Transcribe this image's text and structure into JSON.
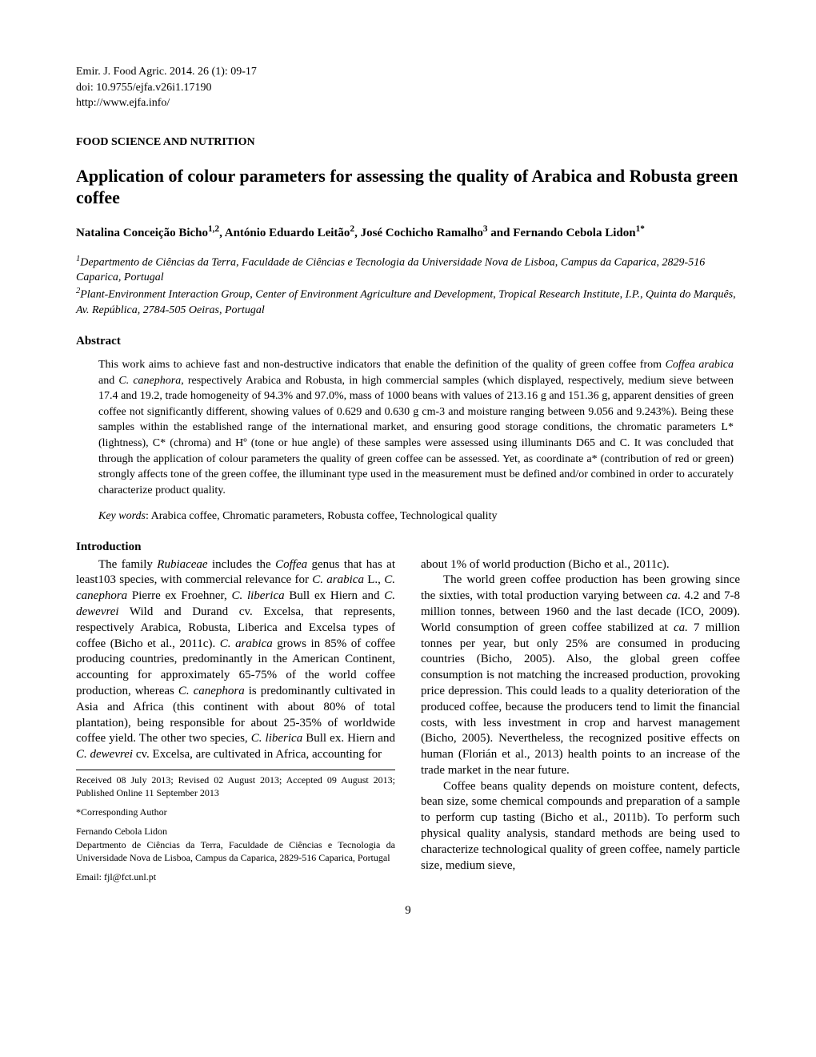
{
  "header": {
    "journal": "Emir. J. Food Agric. 2014. 26 (1): 09-17",
    "doi": "doi: 10.9755/ejfa.v26i1.17190",
    "url": "http://www.ejfa.info/"
  },
  "section_heading": "FOOD SCIENCE AND NUTRITION",
  "title": "Application of colour parameters for assessing the quality of Arabica and Robusta green coffee",
  "authors_html": "Natalina Conceição Bicho<sup>1,2</sup>, António Eduardo Leitão<sup>2</sup>, José Cochicho Ramalho<sup>3</sup> and Fernando Cebola Lidon<sup>1*</sup>",
  "affiliations": {
    "a1": "<sup>1</sup>Departmento de Ciências da Terra, Faculdade de Ciências e Tecnologia da Universidade Nova de Lisboa, Campus da Caparica, 2829-516 Caparica, Portugal",
    "a2": "<sup>2</sup>Plant-Environment Interaction Group, Center of Environment Agriculture and Development, Tropical Research Institute, I.P., Quinta do Marquês, Av. República, 2784-505 Oeiras, Portugal"
  },
  "abstract": {
    "label": "Abstract",
    "text": "This work aims to achieve fast and non-destructive indicators that enable the definition of the quality of green coffee from <i>Coffea arabica</i> and <i>C. canephora</i>, respectively Arabica and Robusta, in high commercial samples (which displayed, respectively, medium sieve between 17.4 and 19.2, trade homogeneity of 94.3% and 97.0%, mass of 1000 beans with values of 213.16 g and 151.36 g, apparent densities of green coffee not significantly different, showing values of 0.629 and 0.630 g cm-3 and moisture ranging between 9.056 and 9.243%). Being these samples within the established range of the international market, and ensuring good storage conditions, the chromatic parameters L* (lightness), C* (chroma) and Hº (tone or hue angle) of these samples were assessed using illuminants D65 and C. It was concluded that through the application of colour parameters the quality of green coffee can be assessed. Yet, as coordinate a* (contribution of red or green) strongly affects tone of the green coffee, the illuminant type used in the measurement must be defined and/or combined in order to accurately characterize product quality."
  },
  "keywords": {
    "label": "Key words",
    "text": ": Arabica coffee, Chromatic parameters, Robusta coffee, Technological quality"
  },
  "introduction": {
    "heading": "Introduction",
    "col1_p1": "The family <i>Rubiaceae</i> includes the <i>Coffea</i> genus that has at least103 species, with commercial relevance for <i>C. arabica</i> L., <i>C. canephora</i> Pierre ex Froehner, <i>C. liberica</i> Bull ex Hiern and <i>C. dewevrei</i> Wild and Durand cv. Excelsa, that represents, respectively Arabica, Robusta, Liberica and Excelsa types of coffee (Bicho et al., 2011c). <i>C. arabica</i> grows in 85% of coffee producing countries, predominantly in the American Continent, accounting for approximately 65-75% of the world coffee production, whereas <i>C. canephora</i> is predominantly cultivated in Asia and Africa (this continent with about 80% of total plantation), being responsible for about 25-35% of worldwide coffee yield. The other two species, <i>C. liberica</i> Bull ex. Hiern and <i>C. dewevrei</i> cv. Excelsa, are cultivated in Africa, accounting for",
    "col2_p1": "about 1% of world production (Bicho et al., 2011c).",
    "col2_p2": "The world green coffee production has been growing since the sixties, with total production varying between <i>ca</i>. 4.2 and 7-8 million tonnes, between 1960 and the last decade (ICO, 2009). World consumption of green coffee stabilized at <i>ca.</i> 7 million tonnes per year, but only 25% are consumed in producing countries (Bicho, 2005). Also, the global green coffee consumption is not matching the increased production, provoking price depression. This could leads to a quality deterioration of the produced coffee, because the producers tend to limit the financial costs, with less investment in crop and harvest management (Bicho, 2005). Nevertheless, the recognized positive effects on human (Florián et al., 2013) health points to an increase of the trade market in the near future.",
    "col2_p3": "Coffee beans quality depends on moisture content, defects, bean size, some chemical compounds and preparation of a sample to perform cup tasting (Bicho et al., 2011b). To perform such physical quality analysis, standard methods are being used to characterize technological quality of green coffee, namely particle size, medium sieve,"
  },
  "footnotes": {
    "received": "Received 08 July 2013; Revised 02 August 2013; Accepted 09 August 2013; Published Online 11 September 2013",
    "corresponding": "*Corresponding Author",
    "author_name": "Fernando Cebola Lidon",
    "author_address": "Departmento de Ciências da Terra, Faculdade de Ciências e Tecnologia da Universidade Nova de Lisboa, Campus da Caparica, 2829-516 Caparica, Portugal",
    "email": "Email: fjl@fct.unl.pt"
  },
  "page_number": "9"
}
